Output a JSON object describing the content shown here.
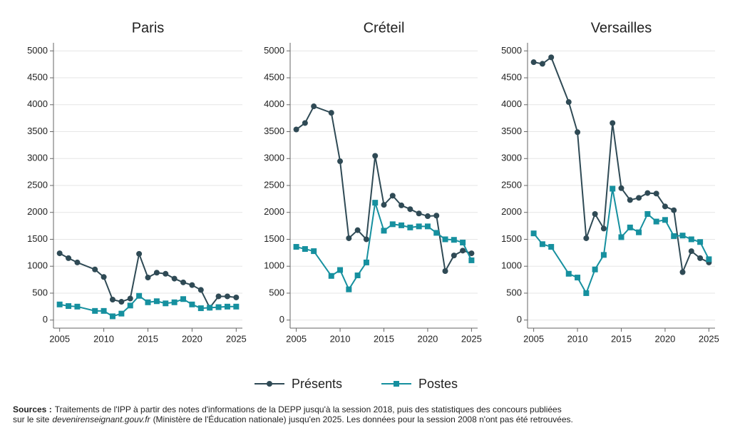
{
  "chart_data": [
    {
      "type": "line",
      "title": "Paris",
      "x": [
        2005,
        2006,
        2007,
        2009,
        2010,
        2011,
        2012,
        2013,
        2014,
        2015,
        2016,
        2017,
        2018,
        2019,
        2020,
        2021,
        2022,
        2023,
        2024,
        2025
      ],
      "series": [
        {
          "name": "Présents",
          "color": "#2f4a55",
          "marker": "circle",
          "values": [
            1240,
            1150,
            1070,
            940,
            800,
            380,
            340,
            400,
            1230,
            790,
            880,
            860,
            770,
            700,
            650,
            560,
            230,
            440,
            440,
            420
          ]
        },
        {
          "name": "Postes",
          "color": "#16909f",
          "marker": "square",
          "values": [
            290,
            260,
            250,
            170,
            170,
            70,
            120,
            270,
            450,
            330,
            350,
            310,
            330,
            390,
            290,
            220,
            230,
            240,
            250,
            250
          ]
        }
      ],
      "xlim": [
        2004.3,
        2025.7
      ],
      "xticks": [
        2005,
        2010,
        2015,
        2020,
        2025
      ],
      "ylim": [
        -150,
        5150
      ],
      "yticks": [
        0,
        500,
        1000,
        1500,
        2000,
        2500,
        3000,
        3500,
        4000,
        4500,
        5000
      ],
      "grid": true
    },
    {
      "type": "line",
      "title": "Créteil",
      "x": [
        2005,
        2006,
        2007,
        2009,
        2010,
        2011,
        2012,
        2013,
        2014,
        2015,
        2016,
        2017,
        2018,
        2019,
        2020,
        2021,
        2022,
        2023,
        2024,
        2025
      ],
      "series": [
        {
          "color": "#2f4a55",
          "marker": "circle",
          "values": [
            3540,
            3660,
            3970,
            3850,
            2950,
            1520,
            1670,
            1500,
            3050,
            2140,
            2310,
            2130,
            2060,
            1980,
            1930,
            1940,
            910,
            1200,
            1290,
            1240
          ]
        },
        {
          "color": "#16909f",
          "marker": "square",
          "values": [
            1360,
            1320,
            1280,
            820,
            930,
            570,
            830,
            1070,
            2180,
            1660,
            1780,
            1760,
            1720,
            1740,
            1740,
            1620,
            1500,
            1490,
            1440,
            1110
          ]
        }
      ],
      "xlim": [
        2004.3,
        2025.7
      ],
      "xticks": [
        2005,
        2010,
        2015,
        2020,
        2025
      ],
      "ylim": [
        -150,
        5150
      ],
      "yticks": [
        0,
        500,
        1000,
        1500,
        2000,
        2500,
        3000,
        3500,
        4000,
        4500,
        5000
      ],
      "grid": true
    },
    {
      "type": "line",
      "title": "Versailles",
      "x": [
        2005,
        2006,
        2007,
        2009,
        2010,
        2011,
        2012,
        2013,
        2014,
        2015,
        2016,
        2017,
        2018,
        2019,
        2020,
        2021,
        2022,
        2023,
        2024,
        2025
      ],
      "series": [
        {
          "color": "#2f4a55",
          "marker": "circle",
          "values": [
            4790,
            4760,
            4880,
            4050,
            3490,
            1520,
            1970,
            1700,
            3660,
            2450,
            2230,
            2270,
            2360,
            2350,
            2110,
            2040,
            890,
            1280,
            1150,
            1070
          ]
        },
        {
          "color": "#16909f",
          "marker": "square",
          "values": [
            1610,
            1410,
            1360,
            860,
            790,
            500,
            940,
            1210,
            2440,
            1540,
            1720,
            1630,
            1970,
            1830,
            1860,
            1560,
            1570,
            1500,
            1450,
            1130
          ]
        }
      ],
      "xlim": [
        2004.3,
        2025.7
      ],
      "xticks": [
        2005,
        2010,
        2015,
        2020,
        2025
      ],
      "ylim": [
        -150,
        5150
      ],
      "yticks": [
        0,
        500,
        1000,
        1500,
        2000,
        2500,
        3000,
        3500,
        4000,
        4500,
        5000
      ],
      "grid": true
    }
  ],
  "source": {
    "label": "Sources :",
    "line1": "Traitements de l'IPP à partir des notes d'informations de la DEPP jusqu'à la session 2018, puis des statistiques des concours publiées",
    "line2_start": "sur le site",
    "site": "devenirenseignant.gouv.fr",
    "line2_end": "(Ministère de l'Éducation nationale) jusqu'en 2025. Les données pour la session 2008 n'ont pas été retrouvées."
  }
}
